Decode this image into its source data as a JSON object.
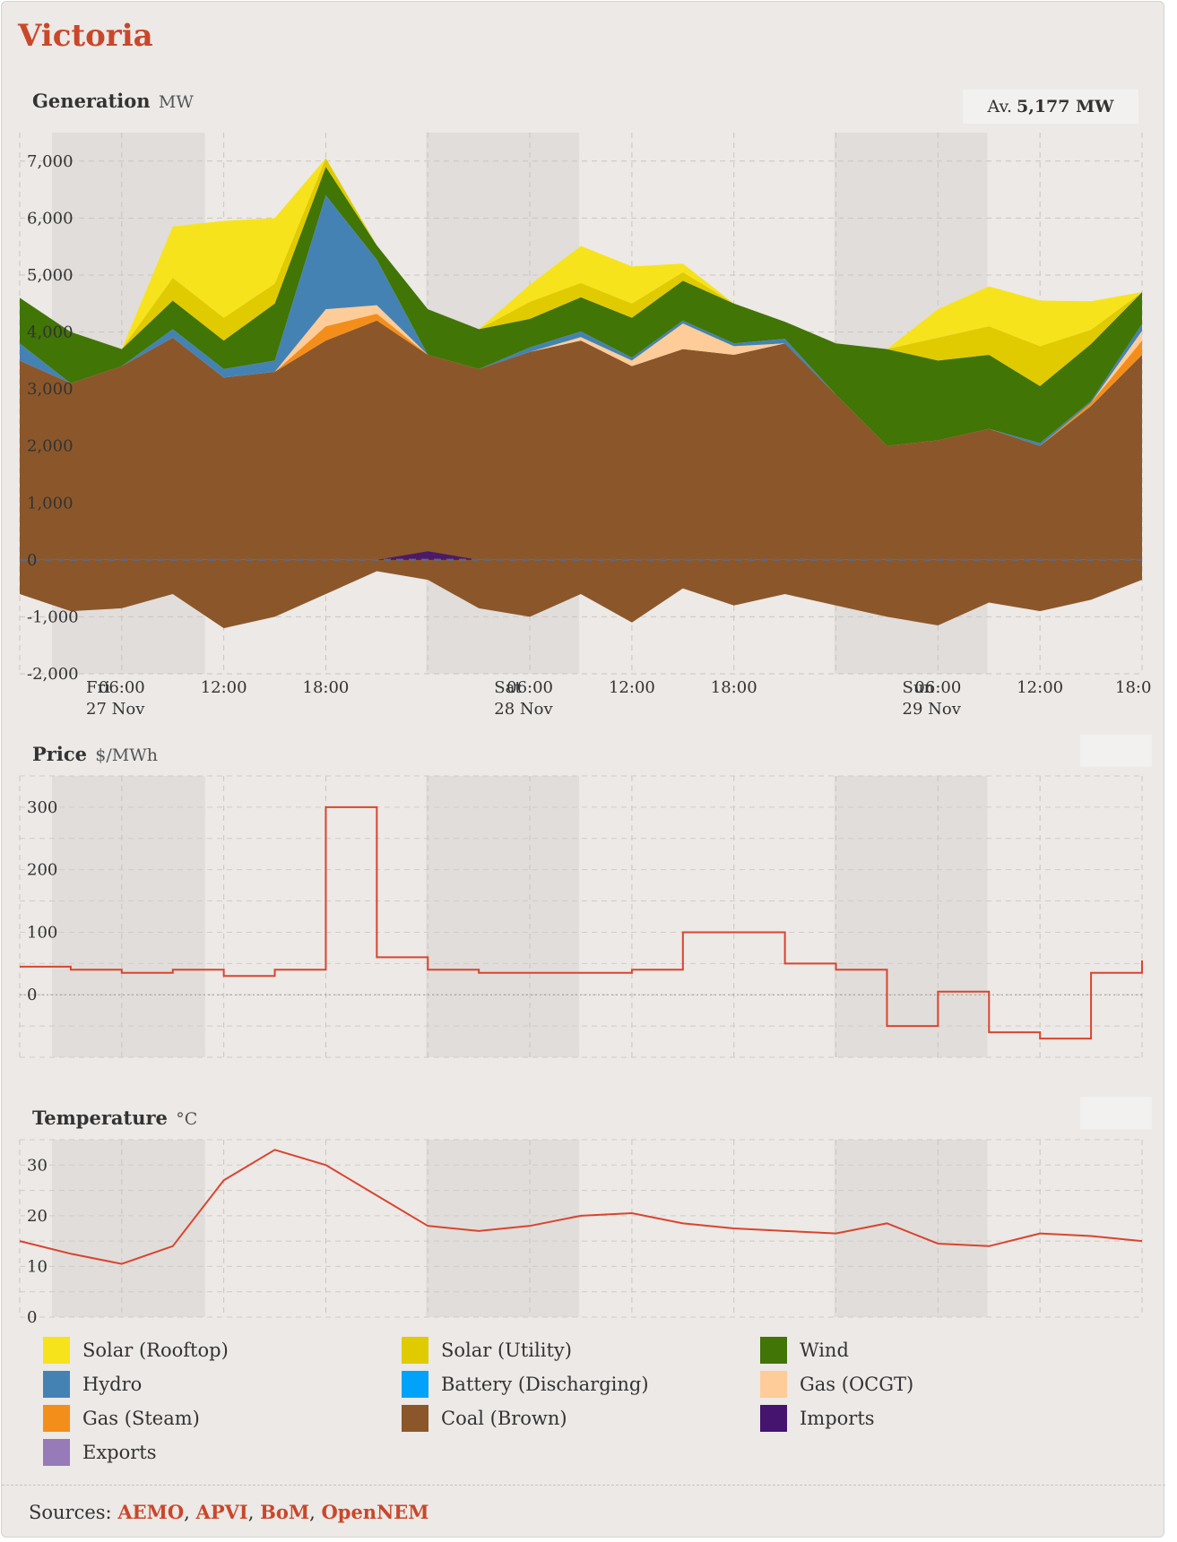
{
  "region": "Victoria",
  "generation": {
    "title": "Generation",
    "unit": "MW",
    "avg_label": "Av.",
    "avg_value": "5,177 MW"
  },
  "price": {
    "title": "Price",
    "unit": "$/MWh"
  },
  "temperature": {
    "title": "Temperature",
    "unit": "°C"
  },
  "x_axis": {
    "day_labels": [
      {
        "day": "Fri",
        "date": "27 Nov"
      },
      {
        "day": "Sat",
        "date": "28 Nov"
      },
      {
        "day": "Sun",
        "date": "29 Nov"
      }
    ],
    "hour_labels": [
      "06:00",
      "12:00",
      "18:00"
    ],
    "last_label": "18:0"
  },
  "legend": [
    {
      "label": "Solar (Rooftop)",
      "color": "#f7e31c"
    },
    {
      "label": "Solar (Utility)",
      "color": "#e0cb00"
    },
    {
      "label": "Wind",
      "color": "#417505"
    },
    {
      "label": "Hydro",
      "color": "#4582b4"
    },
    {
      "label": "Battery (Discharging)",
      "color": "#00a2fa"
    },
    {
      "label": "Gas (OCGT)",
      "color": "#fdcc99"
    },
    {
      "label": "Gas (Steam)",
      "color": "#f48e1b"
    },
    {
      "label": "Coal (Brown)",
      "color": "#8b572a"
    },
    {
      "label": "Imports",
      "color": "#44146f"
    },
    {
      "label": "Exports",
      "color": "#977ab8"
    }
  ],
  "sources": {
    "label": "Sources:",
    "links": [
      "AEMO",
      "APVI",
      "BoM",
      "OpenNEM"
    ]
  },
  "chart_data": [
    {
      "type": "area",
      "title": "Generation",
      "ylabel": "MW",
      "ylim": [
        -2000,
        7500
      ],
      "yticks": [
        -2000,
        -1000,
        0,
        1000,
        2000,
        3000,
        4000,
        5000,
        6000,
        7000
      ],
      "x": [
        "Fri 27 Nov 00:00",
        "Fri 03:00",
        "Fri 06:00",
        "Fri 09:00",
        "Fri 12:00",
        "Fri 15:00",
        "Fri 18:00",
        "Fri 21:00",
        "Sat 28 Nov 00:00",
        "Sat 03:00",
        "Sat 06:00",
        "Sat 09:00",
        "Sat 12:00",
        "Sat 15:00",
        "Sat 18:00",
        "Sat 21:00",
        "Sun 29 Nov 00:00",
        "Sun 03:00",
        "Sun 06:00",
        "Sun 09:00",
        "Sun 12:00",
        "Sun 15:00",
        "Sun 18:00"
      ],
      "series": [
        {
          "name": "Coal (Brown)",
          "values": [
            3500,
            3100,
            3400,
            3900,
            3200,
            3300,
            3850,
            4200,
            3600,
            3350,
            3650,
            3850,
            3400,
            3700,
            3600,
            3800,
            2900,
            2000,
            2100,
            2300,
            2000,
            2700,
            3600
          ]
        },
        {
          "name": "Gas (Steam)",
          "values": [
            0,
            0,
            0,
            0,
            0,
            0,
            250,
            120,
            0,
            0,
            0,
            0,
            0,
            0,
            0,
            0,
            0,
            0,
            0,
            0,
            0,
            60,
            250
          ]
        },
        {
          "name": "Gas (OCGT)",
          "values": [
            0,
            0,
            0,
            0,
            0,
            0,
            300,
            150,
            0,
            0,
            0,
            60,
            100,
            450,
            150,
            0,
            0,
            0,
            0,
            0,
            0,
            0,
            170
          ]
        },
        {
          "name": "Battery (Discharging)",
          "values": [
            0,
            0,
            0,
            0,
            0,
            0,
            0,
            0,
            0,
            0,
            0,
            0,
            0,
            0,
            0,
            0,
            0,
            0,
            0,
            0,
            0,
            0,
            0
          ]
        },
        {
          "name": "Hydro",
          "values": [
            300,
            0,
            0,
            150,
            150,
            200,
            2000,
            800,
            0,
            0,
            80,
            100,
            50,
            50,
            50,
            80,
            0,
            0,
            0,
            0,
            50,
            30,
            120
          ]
        },
        {
          "name": "Wind",
          "values": [
            800,
            900,
            300,
            500,
            500,
            1000,
            500,
            250,
            800,
            700,
            500,
            600,
            700,
            700,
            700,
            300,
            900,
            1700,
            1400,
            1300,
            1000,
            1000,
            560
          ]
        },
        {
          "name": "Solar (Utility)",
          "values": [
            0,
            0,
            0,
            400,
            400,
            350,
            150,
            0,
            0,
            0,
            300,
            250,
            250,
            150,
            0,
            0,
            0,
            0,
            400,
            500,
            700,
            250,
            0
          ]
        },
        {
          "name": "Solar (Rooftop)",
          "values": [
            0,
            0,
            0,
            900,
            1700,
            1150,
            0,
            0,
            0,
            0,
            300,
            650,
            650,
            150,
            0,
            0,
            0,
            0,
            500,
            700,
            800,
            500,
            0
          ]
        },
        {
          "name": "Imports",
          "values": [
            0,
            0,
            0,
            0,
            0,
            0,
            0,
            0,
            150,
            0,
            0,
            0,
            0,
            0,
            0,
            0,
            0,
            0,
            0,
            0,
            0,
            0,
            0
          ]
        },
        {
          "name": "Exports",
          "values": [
            -600,
            -900,
            -850,
            -600,
            -1200,
            -1000,
            -600,
            -200,
            -350,
            -850,
            -1000,
            -600,
            -1100,
            -500,
            -800,
            -600,
            -800,
            -1000,
            -1150,
            -750,
            -900,
            -700,
            -350
          ]
        }
      ]
    },
    {
      "type": "line",
      "title": "Price",
      "ylabel": "$/MWh",
      "ylim": [
        -100,
        350
      ],
      "yticks": [
        0,
        100,
        200,
        300
      ],
      "x": [
        "Fri 27 Nov 00:00",
        "Fri 03:00",
        "Fri 06:00",
        "Fri 09:00",
        "Fri 12:00",
        "Fri 15:00",
        "Fri 18:00",
        "Fri 21:00",
        "Sat 28 Nov 00:00",
        "Sat 03:00",
        "Sat 06:00",
        "Sat 09:00",
        "Sat 12:00",
        "Sat 15:00",
        "Sat 18:00",
        "Sat 21:00",
        "Sun 29 Nov 00:00",
        "Sun 03:00",
        "Sun 06:00",
        "Sun 09:00",
        "Sun 12:00",
        "Sun 15:00",
        "Sun 18:00"
      ],
      "values": [
        45,
        40,
        35,
        40,
        30,
        40,
        300,
        60,
        40,
        35,
        35,
        35,
        40,
        100,
        100,
        50,
        40,
        -50,
        5,
        -60,
        -70,
        35,
        55
      ]
    },
    {
      "type": "line",
      "title": "Temperature",
      "ylabel": "°C",
      "ylim": [
        0,
        35
      ],
      "yticks": [
        0,
        10,
        20,
        30
      ],
      "x": [
        "Fri 27 Nov 00:00",
        "Fri 03:00",
        "Fri 06:00",
        "Fri 09:00",
        "Fri 12:00",
        "Fri 15:00",
        "Fri 18:00",
        "Fri 21:00",
        "Sat 28 Nov 00:00",
        "Sat 03:00",
        "Sat 06:00",
        "Sat 09:00",
        "Sat 12:00",
        "Sat 15:00",
        "Sat 18:00",
        "Sat 21:00",
        "Sun 29 Nov 00:00",
        "Sun 03:00",
        "Sun 06:00",
        "Sun 09:00",
        "Sun 12:00",
        "Sun 15:00",
        "Sun 18:00"
      ],
      "values": [
        15,
        12.5,
        10.5,
        14,
        27,
        33,
        30,
        24,
        18,
        17,
        18,
        20,
        20.5,
        18.5,
        17.5,
        17,
        16.5,
        18.5,
        14.5,
        14,
        16.5,
        16,
        15
      ]
    }
  ]
}
